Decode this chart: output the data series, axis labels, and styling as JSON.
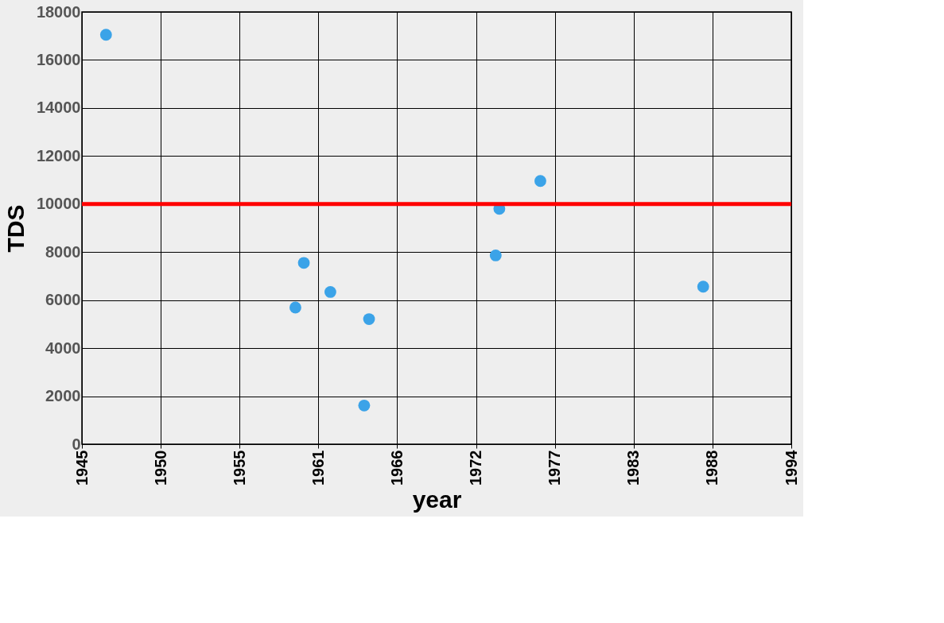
{
  "chart_data": {
    "type": "scatter",
    "xlabel": "year",
    "ylabel": "TDS",
    "x": [
      "1946-09",
      "1959-10",
      "1960-05",
      "1962-03",
      "1964-11",
      "1964-07",
      "1973-08",
      "1973-11",
      "1976-09",
      "1987-12"
    ],
    "series": [
      {
        "color": "#3ba3e8",
        "values": [
          17050,
          5690,
          7550,
          6340,
          5210,
          1610,
          7860,
          9800,
          10960,
          6560
        ]
      }
    ],
    "xlim": [
      "1945-01-01",
      "1994-01-01"
    ],
    "xticks": [
      {
        "value": "1945-01-01",
        "label": "1945"
      },
      {
        "value": "1950-06-12",
        "label": "1950"
      },
      {
        "value": "1955-11-22",
        "label": "1955"
      },
      {
        "value": "1961-05-02",
        "label": "1961"
      },
      {
        "value": "1966-10-12",
        "label": "1966"
      },
      {
        "value": "1972-03-23",
        "label": "1972"
      },
      {
        "value": "1977-09-01",
        "label": "1977"
      },
      {
        "value": "1983-02-11",
        "label": "1983"
      },
      {
        "value": "1988-07-22",
        "label": "1988"
      },
      {
        "value": "1994-01-01",
        "label": "1994"
      }
    ],
    "ylim": [
      0,
      18000
    ],
    "yticks": [
      0,
      2000,
      4000,
      6000,
      8000,
      10000,
      12000,
      14000,
      16000,
      18000
    ],
    "ref_lines": [
      {
        "axis": "y",
        "value": 10000,
        "color": "#ff0000"
      }
    ],
    "grid": true,
    "marker": "circle"
  }
}
